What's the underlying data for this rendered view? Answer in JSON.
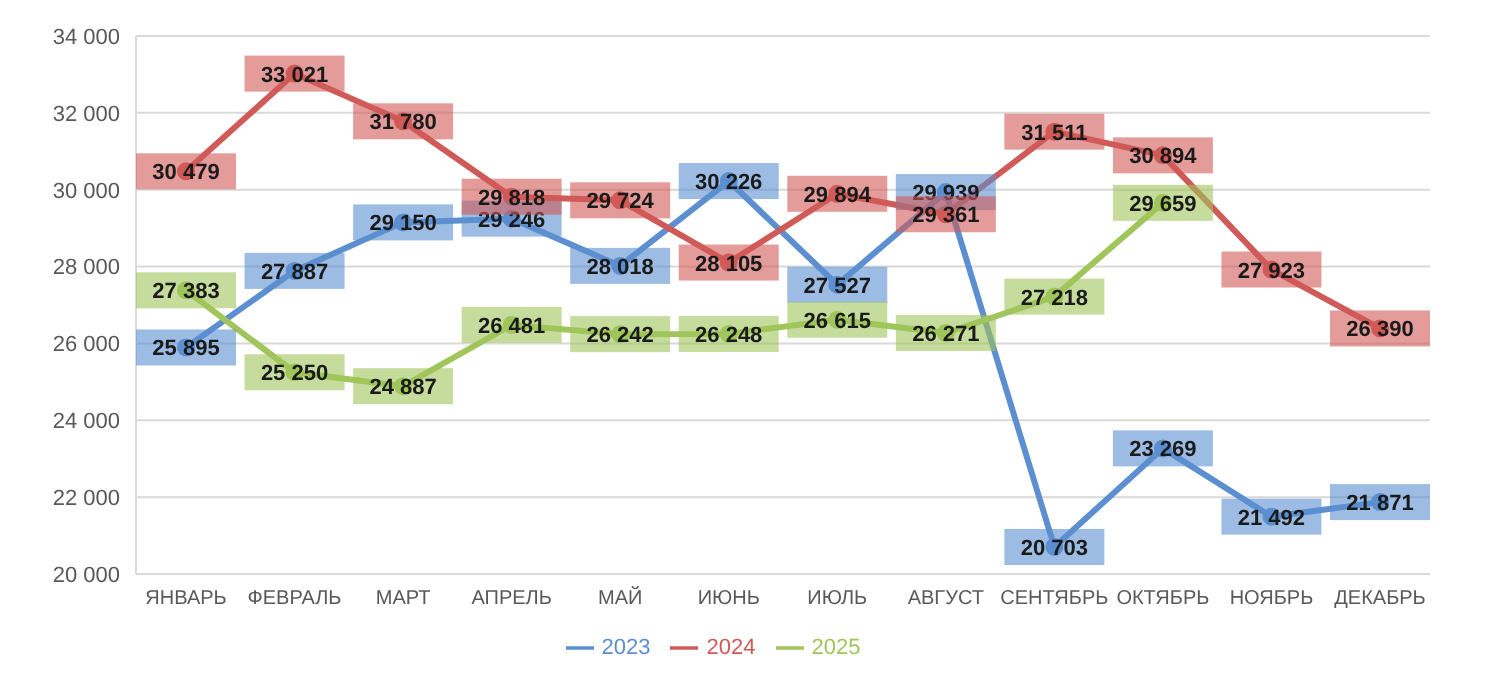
{
  "chart_data": {
    "type": "line",
    "categories": [
      "ЯНВАРЬ",
      "ФЕВРАЛЬ",
      "МАРТ",
      "АПРЕЛЬ",
      "МАЙ",
      "ИЮНЬ",
      "ИЮЛЬ",
      "АВГУСТ",
      "СЕНТЯБРЬ",
      "ОКТЯБРЬ",
      "НОЯБРЬ",
      "ДЕКАБРЬ"
    ],
    "series": [
      {
        "name": "2023",
        "color": "#5b8fd0",
        "values": [
          25895,
          27887,
          29150,
          29246,
          28018,
          30226,
          27527,
          29939,
          20703,
          23269,
          21492,
          21871
        ],
        "value_labels": [
          "25 895",
          "27 887",
          "29 150",
          "29 246",
          "28 018",
          "30 226",
          "27 527",
          "29 939",
          "20 703",
          "23 269",
          "21 492",
          "21 871"
        ]
      },
      {
        "name": "2024",
        "color": "#d05a57",
        "values": [
          30479,
          33021,
          31780,
          29818,
          29724,
          28105,
          29894,
          29361,
          31511,
          30894,
          27923,
          26390
        ],
        "value_labels": [
          "30 479",
          "33 021",
          "31 780",
          "29 818",
          "29 724",
          "28 105",
          "29 894",
          "29 361",
          "31 511",
          "30 894",
          "27 923",
          "26 390"
        ]
      },
      {
        "name": "2025",
        "color": "#a0c55a",
        "values": [
          27383,
          25250,
          24887,
          26481,
          26242,
          26248,
          26615,
          26271,
          27218,
          29659,
          null,
          null
        ],
        "value_labels": [
          "27 383",
          "25 250",
          "24 887",
          "26 481",
          "26 242",
          "26 248",
          "26 615",
          "26 271",
          "27 218",
          "29 659",
          null,
          null
        ]
      }
    ],
    "ylim": [
      20000,
      34000
    ],
    "yticks": [
      {
        "value": 20000,
        "label": "20 000"
      },
      {
        "value": 22000,
        "label": "22 000"
      },
      {
        "value": 24000,
        "label": "24 000"
      },
      {
        "value": 26000,
        "label": "26 000"
      },
      {
        "value": 28000,
        "label": "28 000"
      },
      {
        "value": 30000,
        "label": "30 000"
      },
      {
        "value": 32000,
        "label": "32 000"
      },
      {
        "value": 34000,
        "label": "34 000"
      }
    ],
    "grid": "y",
    "legend": "bottom",
    "marker": "circle",
    "line_style": "solid"
  }
}
